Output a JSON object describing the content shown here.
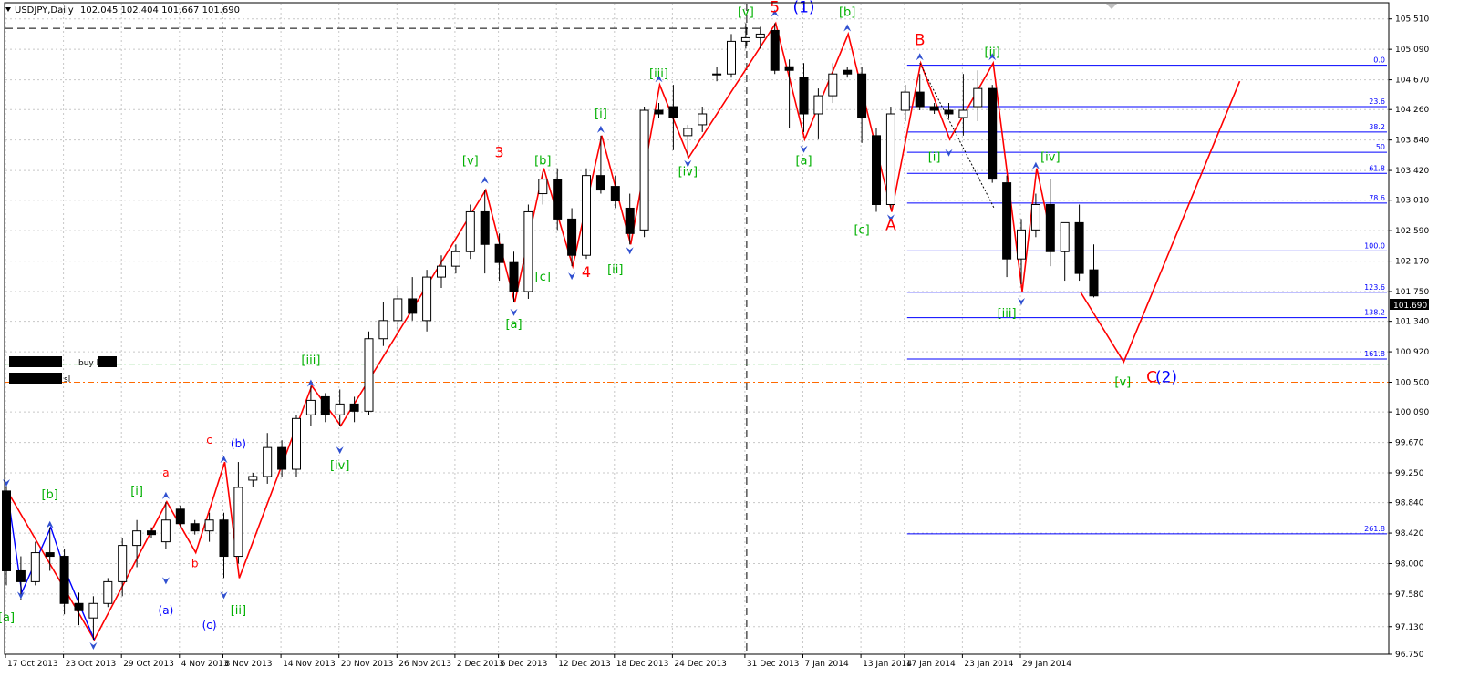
{
  "header": {
    "symbol": "USDJPY,Daily",
    "ohlc": "102.045 102.404 101.667 101.690"
  },
  "colors": {
    "background": "#ffffff",
    "grid": "#c8c8c8",
    "candle_bull": "#ffffff",
    "candle_bear": "#000000",
    "wave_line": "#ff0000",
    "wave_line_small": "#0000ff",
    "fib_line": "#0000ff",
    "green_label": "#00b000",
    "red_label": "#ff0000",
    "blue_label": "#0000ff",
    "buy_limit_line": "#00aa00",
    "sl_line": "#ff6a00",
    "current_price_bg": "#000000"
  },
  "order_labels": {
    "buy_limit": "buy limit",
    "sl": "sl"
  },
  "current_price_label": "101.690",
  "chart_data": {
    "type": "candlestick",
    "title": "USDJPY,Daily",
    "y_ticks": [
      "105.510",
      "105.090",
      "104.670",
      "104.260",
      "103.840",
      "103.420",
      "103.010",
      "102.590",
      "102.170",
      "101.750",
      "101.340",
      "100.920",
      "100.500",
      "100.090",
      "99.670",
      "99.250",
      "98.840",
      "98.420",
      "98.000",
      "97.580",
      "97.130",
      "96.750"
    ],
    "x_ticks": [
      "17 Oct 2013",
      "23 Oct 2013",
      "29 Oct 2013",
      "4 Nov 2013",
      "8 Nov 2013",
      "14 Nov 2013",
      "20 Nov 2013",
      "26 Nov 2013",
      "2 Dec 2013",
      "6 Dec 2013",
      "12 Dec 2013",
      "18 Dec 2013",
      "24 Dec 2013",
      "31 Dec 2013",
      "7 Jan 2014",
      "13 Jan 2014",
      "17 Jan 2014",
      "23 Jan 2014",
      "29 Jan 2014"
    ],
    "ylim": [
      96.75,
      105.72
    ],
    "grid": true,
    "candles": [
      {
        "o": 99.0,
        "h": 99.1,
        "l": 97.7,
        "c": 97.9
      },
      {
        "o": 97.9,
        "h": 98.1,
        "l": 97.5,
        "c": 97.75
      },
      {
        "o": 97.75,
        "h": 98.3,
        "l": 97.7,
        "c": 98.15
      },
      {
        "o": 98.15,
        "h": 98.5,
        "l": 97.9,
        "c": 98.1
      },
      {
        "o": 98.1,
        "h": 98.2,
        "l": 97.3,
        "c": 97.45
      },
      {
        "o": 97.45,
        "h": 97.6,
        "l": 97.15,
        "c": 97.35
      },
      {
        "o": 97.25,
        "h": 97.55,
        "l": 96.95,
        "c": 97.45
      },
      {
        "o": 97.45,
        "h": 97.8,
        "l": 97.4,
        "c": 97.75
      },
      {
        "o": 97.75,
        "h": 98.35,
        "l": 97.55,
        "c": 98.25
      },
      {
        "o": 98.25,
        "h": 98.6,
        "l": 97.95,
        "c": 98.45
      },
      {
        "o": 98.45,
        "h": 98.5,
        "l": 98.35,
        "c": 98.4
      },
      {
        "o": 98.3,
        "h": 98.85,
        "l": 98.2,
        "c": 98.6
      },
      {
        "o": 98.75,
        "h": 98.8,
        "l": 98.5,
        "c": 98.55
      },
      {
        "o": 98.55,
        "h": 98.6,
        "l": 98.4,
        "c": 98.45
      },
      {
        "o": 98.45,
        "h": 98.7,
        "l": 98.3,
        "c": 98.6
      },
      {
        "o": 98.6,
        "h": 98.7,
        "l": 97.8,
        "c": 98.1
      },
      {
        "o": 98.1,
        "h": 99.4,
        "l": 98.0,
        "c": 99.05
      },
      {
        "o": 99.15,
        "h": 99.25,
        "l": 99.05,
        "c": 99.2
      },
      {
        "o": 99.2,
        "h": 99.8,
        "l": 99.1,
        "c": 99.6
      },
      {
        "o": 99.6,
        "h": 99.7,
        "l": 99.2,
        "c": 99.3
      },
      {
        "o": 99.3,
        "h": 100.05,
        "l": 99.2,
        "c": 100.0
      },
      {
        "o": 100.05,
        "h": 100.45,
        "l": 99.9,
        "c": 100.25
      },
      {
        "o": 100.3,
        "h": 100.35,
        "l": 99.95,
        "c": 100.05
      },
      {
        "o": 100.05,
        "h": 100.4,
        "l": 99.9,
        "c": 100.2
      },
      {
        "o": 100.2,
        "h": 100.3,
        "l": 99.95,
        "c": 100.1
      },
      {
        "o": 100.1,
        "h": 101.2,
        "l": 100.05,
        "c": 101.1
      },
      {
        "o": 101.1,
        "h": 101.6,
        "l": 101.0,
        "c": 101.35
      },
      {
        "o": 101.35,
        "h": 101.8,
        "l": 101.2,
        "c": 101.65
      },
      {
        "o": 101.65,
        "h": 101.95,
        "l": 101.35,
        "c": 101.45
      },
      {
        "o": 101.35,
        "h": 102.05,
        "l": 101.2,
        "c": 101.95
      },
      {
        "o": 101.95,
        "h": 102.25,
        "l": 101.8,
        "c": 102.1
      },
      {
        "o": 102.1,
        "h": 102.4,
        "l": 102.0,
        "c": 102.3
      },
      {
        "o": 102.3,
        "h": 102.95,
        "l": 102.2,
        "c": 102.85
      },
      {
        "o": 102.85,
        "h": 103.15,
        "l": 102.0,
        "c": 102.4
      },
      {
        "o": 102.4,
        "h": 102.55,
        "l": 101.9,
        "c": 102.15
      },
      {
        "o": 102.15,
        "h": 102.3,
        "l": 101.6,
        "c": 101.75
      },
      {
        "o": 101.75,
        "h": 102.95,
        "l": 101.65,
        "c": 102.85
      },
      {
        "o": 103.1,
        "h": 103.4,
        "l": 102.95,
        "c": 103.3
      },
      {
        "o": 103.3,
        "h": 103.45,
        "l": 102.6,
        "c": 102.75
      },
      {
        "o": 102.75,
        "h": 102.9,
        "l": 102.1,
        "c": 102.25
      },
      {
        "o": 102.25,
        "h": 103.45,
        "l": 102.2,
        "c": 103.35
      },
      {
        "o": 103.35,
        "h": 103.9,
        "l": 103.1,
        "c": 103.15
      },
      {
        "o": 103.2,
        "h": 103.35,
        "l": 102.9,
        "c": 103.0
      },
      {
        "o": 102.9,
        "h": 103.1,
        "l": 102.4,
        "c": 102.55
      },
      {
        "o": 102.6,
        "h": 104.3,
        "l": 102.5,
        "c": 104.25
      },
      {
        "o": 104.25,
        "h": 104.35,
        "l": 104.15,
        "c": 104.2
      },
      {
        "o": 104.3,
        "h": 104.6,
        "l": 103.7,
        "c": 104.15
      },
      {
        "o": 103.9,
        "h": 104.05,
        "l": 103.6,
        "c": 104.0
      },
      {
        "o": 104.05,
        "h": 104.3,
        "l": 103.95,
        "c": 104.2
      },
      {
        "o": 104.75,
        "h": 104.85,
        "l": 104.65,
        "c": 104.75
      },
      {
        "o": 104.75,
        "h": 105.3,
        "l": 104.7,
        "c": 105.2
      },
      {
        "o": 105.2,
        "h": 105.45,
        "l": 105.1,
        "c": 105.25
      },
      {
        "o": 105.25,
        "h": 105.4,
        "l": 105.1,
        "c": 105.3
      },
      {
        "o": 105.35,
        "h": 105.45,
        "l": 104.75,
        "c": 104.8
      },
      {
        "o": 104.85,
        "h": 104.95,
        "l": 104.0,
        "c": 104.8
      },
      {
        "o": 104.7,
        "h": 104.9,
        "l": 103.95,
        "c": 104.2
      },
      {
        "o": 104.2,
        "h": 104.55,
        "l": 103.85,
        "c": 104.45
      },
      {
        "o": 104.45,
        "h": 104.9,
        "l": 104.35,
        "c": 104.75
      },
      {
        "o": 104.8,
        "h": 104.85,
        "l": 104.7,
        "c": 104.75
      },
      {
        "o": 104.75,
        "h": 104.85,
        "l": 103.8,
        "c": 104.15
      },
      {
        "o": 103.9,
        "h": 104.0,
        "l": 102.85,
        "c": 102.95
      },
      {
        "o": 102.95,
        "h": 104.3,
        "l": 102.9,
        "c": 104.2
      },
      {
        "o": 104.25,
        "h": 104.6,
        "l": 104.1,
        "c": 104.5
      },
      {
        "o": 104.5,
        "h": 104.75,
        "l": 104.25,
        "c": 104.3
      },
      {
        "o": 104.3,
        "h": 104.35,
        "l": 104.2,
        "c": 104.25
      },
      {
        "o": 104.25,
        "h": 104.35,
        "l": 104.15,
        "c": 104.2
      },
      {
        "o": 104.15,
        "h": 104.75,
        "l": 103.9,
        "c": 104.25
      },
      {
        "o": 104.3,
        "h": 104.8,
        "l": 104.1,
        "c": 104.55
      },
      {
        "o": 104.55,
        "h": 104.6,
        "l": 103.25,
        "c": 103.3
      },
      {
        "o": 103.25,
        "h": 103.35,
        "l": 101.95,
        "c": 102.2
      },
      {
        "o": 102.2,
        "h": 102.75,
        "l": 101.85,
        "c": 102.6
      },
      {
        "o": 102.6,
        "h": 103.1,
        "l": 102.5,
        "c": 102.95
      },
      {
        "o": 102.95,
        "h": 103.3,
        "l": 102.1,
        "c": 102.3
      },
      {
        "o": 102.3,
        "h": 102.7,
        "l": 101.9,
        "c": 102.7
      },
      {
        "o": 102.7,
        "h": 102.95,
        "l": 101.9,
        "c": 102.0
      },
      {
        "o": 102.05,
        "h": 102.4,
        "l": 101.67,
        "c": 101.69
      }
    ],
    "fibonacci": {
      "levels": [
        "0.0",
        "23.6",
        "38.2",
        "50",
        "61.8",
        "78.6",
        "100.0",
        "123.6",
        "138.2",
        "161.8",
        "261.8"
      ],
      "prices": [
        104.87,
        104.3,
        103.95,
        103.67,
        103.38,
        102.97,
        102.31,
        101.74,
        101.39,
        100.82,
        98.41
      ]
    },
    "wave_labels_green": [
      "[a]",
      "[b]",
      "[i]",
      "[ii]",
      "[iii]",
      "[iv]",
      "[v]",
      "[a]",
      "[b]",
      "[c]",
      "[iii]",
      "[iv]",
      "[v]",
      "[i]",
      "[ii]",
      "[iii]",
      "[iv]",
      "[v]",
      "[a]",
      "[b]",
      "[c]",
      "[i]",
      "[ii]",
      "[iii]",
      "[iv]",
      "[v]"
    ],
    "wave_labels_red": [
      "a",
      "b",
      "c",
      "3",
      "4",
      "5",
      "B",
      "A",
      "C"
    ],
    "wave_labels_blue": [
      "(a)",
      "(b)",
      "(c)",
      "(1)",
      "(2)"
    ]
  }
}
